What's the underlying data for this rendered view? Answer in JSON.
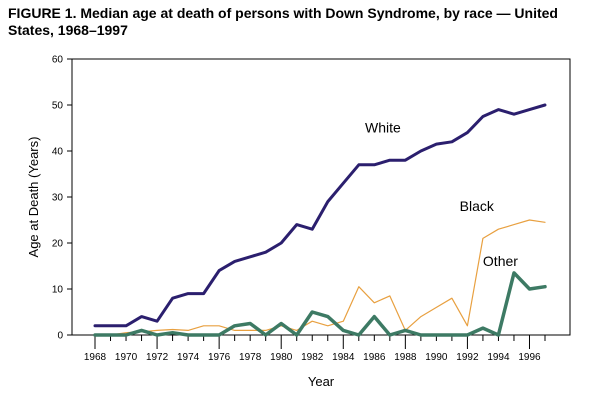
{
  "title": "FIGURE 1. Median age at death of persons with Down Syndrome, by race — United States, 1968–1997",
  "chart_data": {
    "type": "line",
    "title": "FIGURE 1. Median age at death of persons with Down Syndrome, by race — United States, 1968–1997",
    "xlabel": "Year",
    "ylabel": "Age at Death (Years)",
    "xlim": [
      1968,
      1997
    ],
    "ylim": [
      0,
      60
    ],
    "x_ticks": [
      "1968",
      "1970",
      "1972",
      "1974",
      "1976",
      "1978",
      "1980",
      "1982",
      "1984",
      "1986",
      "1988",
      "1990",
      "1992",
      "1994",
      "1996"
    ],
    "y_ticks": [
      "0",
      "10",
      "20",
      "30",
      "40",
      "50",
      "60"
    ],
    "grid": false,
    "legend": "direct labels on lines",
    "x": [
      1968,
      1969,
      1970,
      1971,
      1972,
      1973,
      1974,
      1975,
      1976,
      1977,
      1978,
      1979,
      1980,
      1981,
      1982,
      1983,
      1984,
      1985,
      1986,
      1987,
      1988,
      1989,
      1990,
      1991,
      1992,
      1993,
      1994,
      1995,
      1996,
      1997
    ],
    "series": [
      {
        "name": "White",
        "color": "#2b1f6e",
        "values": [
          2,
          2,
          2,
          4,
          3,
          8,
          9,
          9,
          14,
          16,
          17,
          18,
          20,
          24,
          23,
          29,
          33,
          37,
          37,
          38,
          38,
          40,
          41.5,
          42,
          44,
          47.5,
          49,
          48,
          49,
          50
        ]
      },
      {
        "name": "Black",
        "color": "#e8a040",
        "values": [
          0,
          0,
          0.5,
          0.7,
          1,
          1.2,
          1,
          2,
          2,
          1,
          1,
          1,
          2,
          1,
          3,
          2,
          3,
          10.5,
          7,
          8.5,
          1,
          4,
          6,
          8,
          2,
          21,
          23,
          24,
          25,
          24.5
        ]
      },
      {
        "name": "Other",
        "color": "#3d7a64",
        "values": [
          0,
          0,
          0,
          1,
          0,
          0.5,
          0,
          0,
          0,
          2,
          2.5,
          0,
          2.5,
          0,
          5,
          4,
          1,
          0,
          4,
          0,
          1,
          0,
          0,
          0,
          0,
          1.5,
          0,
          13.5,
          10,
          10.5
        ]
      }
    ]
  }
}
